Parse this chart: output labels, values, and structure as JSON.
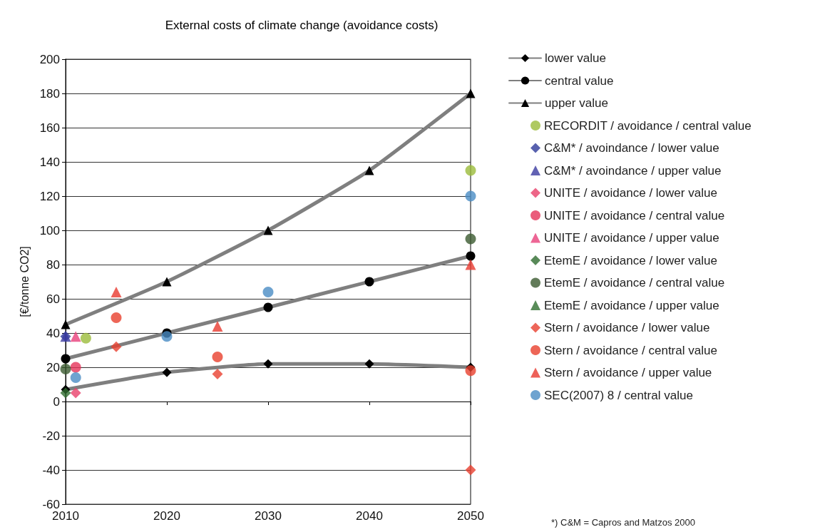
{
  "chart_data": {
    "type": "line",
    "title": "External costs of climate change (avoidance costs)",
    "ylabel": "[€/tonne CO2]",
    "xlim": [
      2010,
      2050
    ],
    "xticks": [
      2010,
      2020,
      2030,
      2040,
      2050
    ],
    "ylim": [
      -60,
      200
    ],
    "yticks": [
      -60,
      -40,
      -20,
      0,
      20,
      40,
      60,
      80,
      100,
      120,
      140,
      160,
      180,
      200
    ],
    "grid": "y",
    "legend": "right",
    "annotations": [
      "*) C&M = Capros and Matzos 2000"
    ],
    "series": [
      {
        "name": "lower value",
        "marker": "diamond",
        "color": "#7f7f7f",
        "x": [
          2010,
          2020,
          2030,
          2040,
          2050
        ],
        "values": [
          7,
          17,
          22,
          22,
          20
        ]
      },
      {
        "name": "central value",
        "marker": "circle",
        "color": "#7f7f7f",
        "x": [
          2010,
          2020,
          2030,
          2040,
          2050
        ],
        "values": [
          25,
          40,
          55,
          70,
          85
        ]
      },
      {
        "name": "upper value",
        "marker": "triangle",
        "color": "#7f7f7f",
        "x": [
          2010,
          2020,
          2030,
          2040,
          2050
        ],
        "values": [
          45,
          70,
          100,
          135,
          180
        ]
      },
      {
        "name": "RECORDIT / avoidance / central value",
        "type": "scatter",
        "marker": "circle",
        "color": "#9bbb3b",
        "x": [
          2012,
          2050
        ],
        "values": [
          37,
          135
        ]
      },
      {
        "name": "C&M* / avoindance / lower value",
        "type": "scatter",
        "marker": "diamond",
        "color": "#2e3a9a",
        "x": [
          2010
        ],
        "values": [
          38
        ]
      },
      {
        "name": "C&M* / avoindance / upper value",
        "type": "scatter",
        "marker": "triangle",
        "color": "#3b3ba0",
        "x": [
          2010
        ],
        "values": [
          38
        ]
      },
      {
        "name": "UNITE / avoidance / lower value",
        "type": "scatter",
        "marker": "diamond",
        "color": "#e8406a",
        "x": [
          2011
        ],
        "values": [
          5
        ]
      },
      {
        "name": "UNITE / avoidance / central value",
        "type": "scatter",
        "marker": "circle",
        "color": "#e5335a",
        "x": [
          2011
        ],
        "values": [
          20
        ]
      },
      {
        "name": "UNITE / avoidance / upper value",
        "type": "scatter",
        "marker": "triangle",
        "color": "#e8407a",
        "x": [
          2011
        ],
        "values": [
          38
        ]
      },
      {
        "name": "EtemE / avoidance / lower value",
        "type": "scatter",
        "marker": "diamond",
        "color": "#2e6b2e",
        "x": [
          2010
        ],
        "values": [
          5
        ]
      },
      {
        "name": "EtemE / avoidance / central value",
        "type": "scatter",
        "marker": "circle",
        "color": "#3b5a30",
        "x": [
          2010,
          2050
        ],
        "values": [
          19,
          95
        ]
      },
      {
        "name": "EtemE / avoidance / upper value",
        "type": "scatter",
        "marker": "triangle",
        "color": "#2f6f2f"
      },
      {
        "name": "Stern / avoidance / lower value",
        "type": "scatter",
        "marker": "diamond",
        "color": "#e84030",
        "x": [
          2015,
          2025,
          2050
        ],
        "values": [
          32,
          16,
          -40
        ]
      },
      {
        "name": "Stern / avoidance / central value",
        "type": "scatter",
        "marker": "circle",
        "color": "#e8402d",
        "x": [
          2015,
          2025,
          2050
        ],
        "values": [
          49,
          26,
          18
        ]
      },
      {
        "name": "Stern / avoidance / upper value",
        "type": "scatter",
        "marker": "triangle",
        "color": "#e83a30",
        "x": [
          2015,
          2025,
          2050
        ],
        "values": [
          64,
          44,
          80
        ]
      },
      {
        "name": "SEC(2007) 8 / central value",
        "type": "scatter",
        "marker": "circle",
        "color": "#4a8cc4",
        "x": [
          2011,
          2020,
          2030,
          2050
        ],
        "values": [
          14,
          38,
          64,
          120
        ]
      }
    ]
  }
}
